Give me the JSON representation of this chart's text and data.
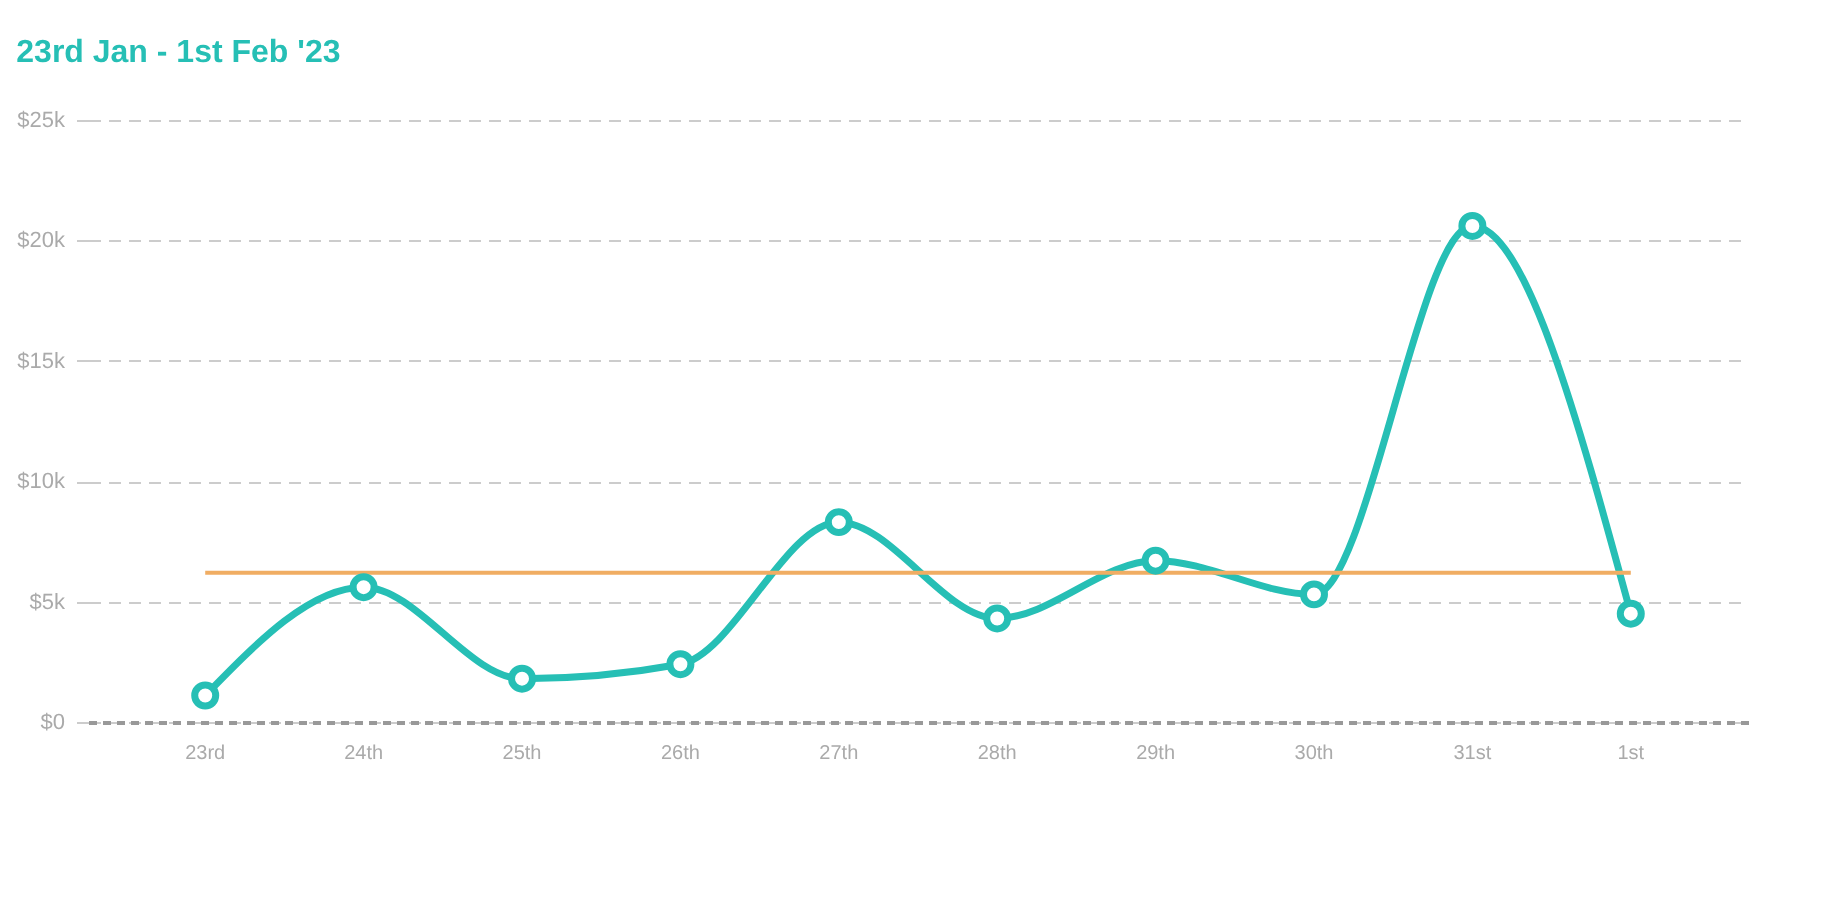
{
  "chart_data": {
    "type": "line",
    "title": "23rd Jan - 1st Feb '23",
    "categories": [
      "23rd",
      "24th",
      "25th",
      "26th",
      "27th",
      "28th",
      "29th",
      "30th",
      "31st",
      "1st"
    ],
    "series": [
      {
        "color": "#26bfb5",
        "values": [
          1100,
          5600,
          1800,
          2400,
          8300,
          4300,
          6700,
          5300,
          20600,
          4500
        ]
      }
    ],
    "ylim": [
      0,
      25000
    ],
    "yticks": [
      {
        "value": 0,
        "label": "$0"
      },
      {
        "value": 5000,
        "label": "$5k"
      },
      {
        "value": 10000,
        "label": "$10k"
      },
      {
        "value": 15000,
        "label": "$15k"
      },
      {
        "value": 20000,
        "label": "$20k"
      },
      {
        "value": 25000,
        "label": "$25k"
      }
    ],
    "ref_lines": [
      {
        "axis": "y",
        "value": 6200,
        "color": "#f0ad63"
      }
    ],
    "grid": "y",
    "marker": "circle",
    "line_style": "solid"
  }
}
